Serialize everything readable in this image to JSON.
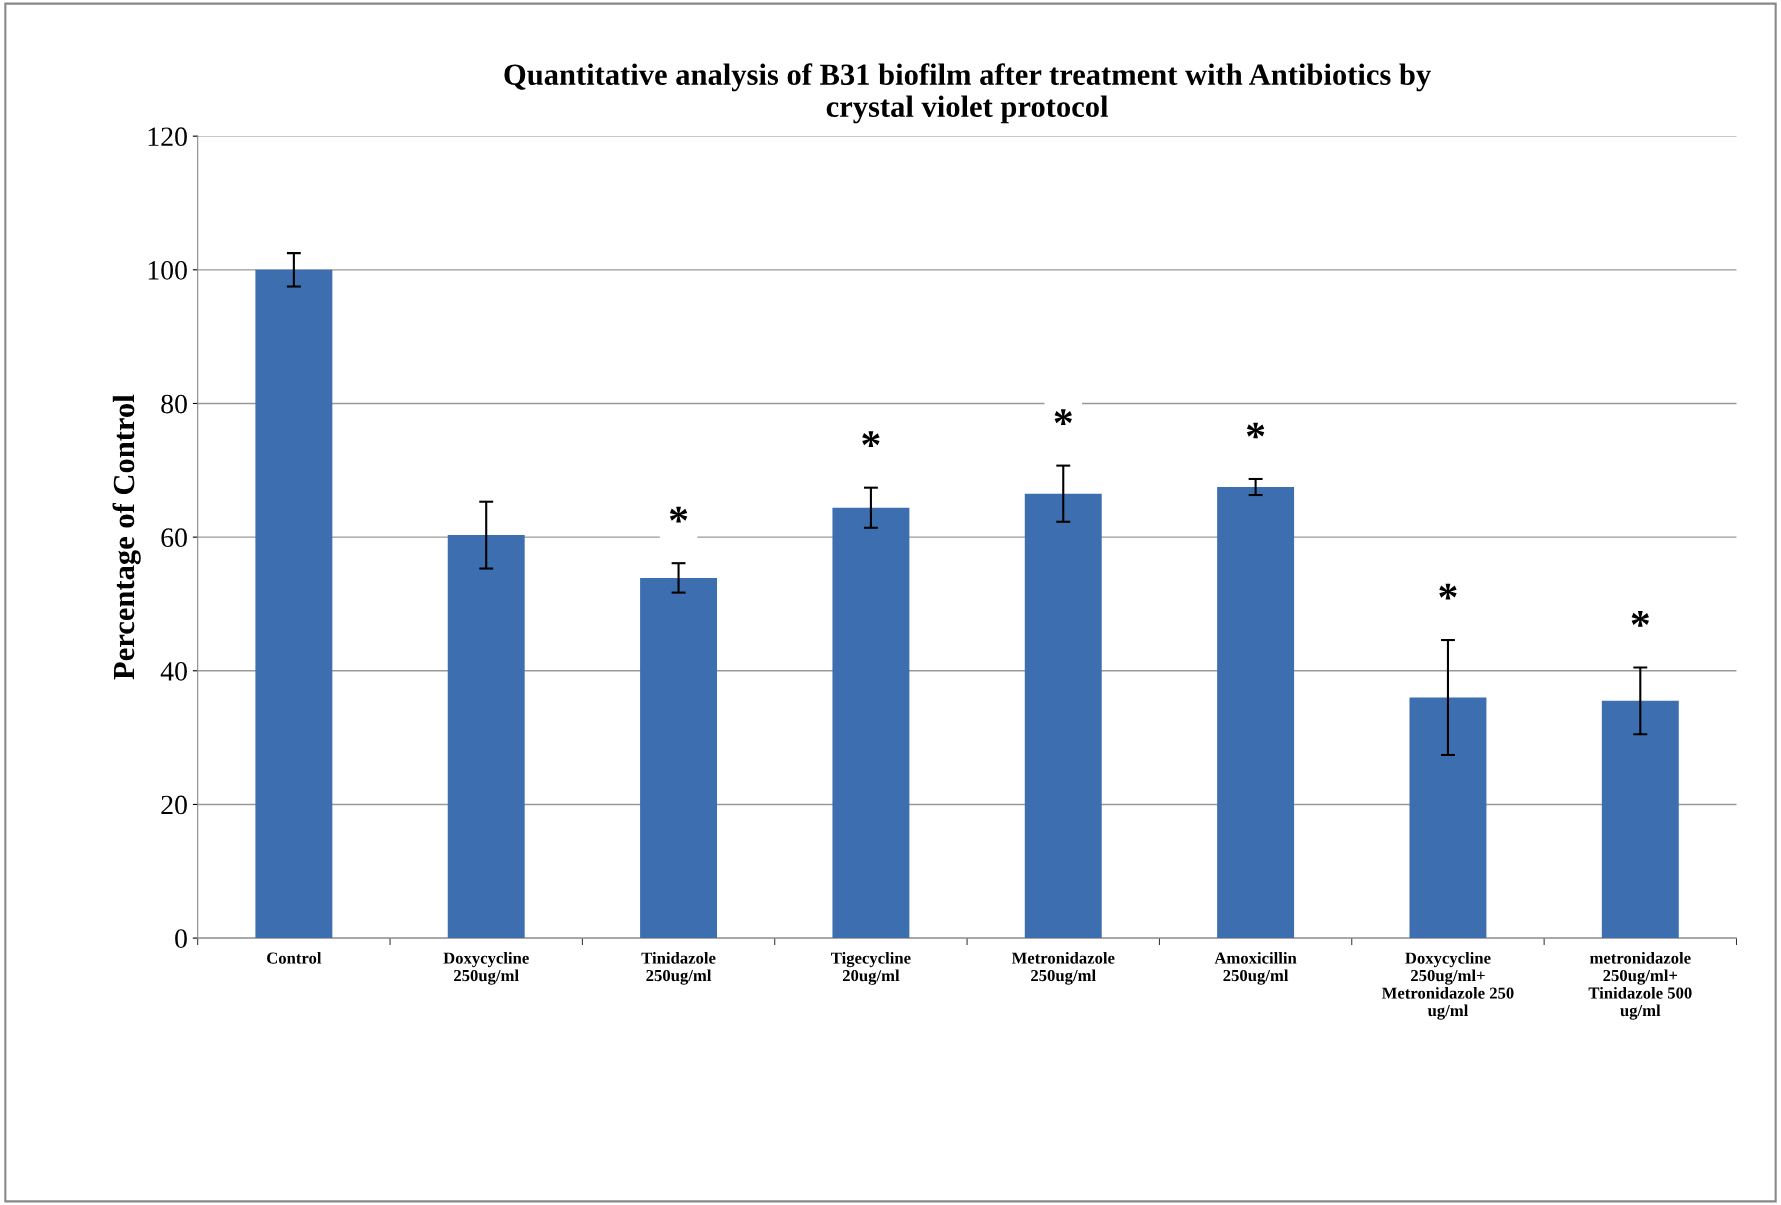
{
  "chart_data": {
    "type": "bar",
    "title": "Quantitative analysis of B31 biofilm after treatment with Antibiotics by\ncrystal violet protocol",
    "ylabel": "Percentage of Control",
    "categories": [
      "Control",
      "Doxycycline\n250ug/ml",
      "Tinidazole\n250ug/ml",
      "Tigecycline\n20ug/ml",
      "Metronidazole\n250ug/ml",
      "Amoxicillin\n250ug/ml",
      "Doxycycline\n250ug/ml+\nMetronidazole 250\nug/ml",
      "metronidazole\n250ug/ml+\nTinidazole 500\nug/ml"
    ],
    "values": [
      100,
      60.3,
      53.9,
      64.4,
      66.5,
      67.5,
      36.0,
      35.5
    ],
    "errors": [
      2.5,
      5,
      2.2,
      3,
      4.2,
      1.2,
      8.6,
      5
    ],
    "value_labels": [
      null,
      null,
      "*",
      "*",
      "*",
      "*",
      "*",
      "*"
    ],
    "color": "#3d6fb0",
    "ylim": [
      0,
      120
    ],
    "yticks": [
      0,
      20,
      40,
      60,
      80,
      100,
      120
    ],
    "grid": "y"
  }
}
